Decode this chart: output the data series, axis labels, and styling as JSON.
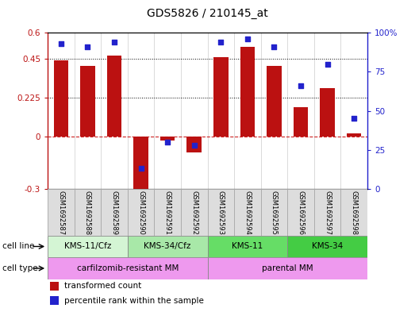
{
  "title": "GDS5826 / 210145_at",
  "samples": [
    "GSM1692587",
    "GSM1692588",
    "GSM1692589",
    "GSM1692590",
    "GSM1692591",
    "GSM1692592",
    "GSM1692593",
    "GSM1692594",
    "GSM1692595",
    "GSM1692596",
    "GSM1692597",
    "GSM1692598"
  ],
  "transformed_count": [
    0.44,
    0.41,
    0.47,
    -0.32,
    -0.02,
    -0.09,
    0.46,
    0.52,
    0.41,
    0.17,
    0.28,
    0.02
  ],
  "percentile_rank": [
    93,
    91,
    94,
    13,
    30,
    28,
    94,
    96,
    91,
    66,
    80,
    45
  ],
  "bar_color": "#bb1111",
  "dot_color": "#2222cc",
  "zero_line_color": "#cc2222",
  "ylim_left": [
    -0.3,
    0.6
  ],
  "ylim_right": [
    0,
    100
  ],
  "yticks_left": [
    -0.3,
    0.0,
    0.225,
    0.45,
    0.6
  ],
  "yticks_right": [
    0,
    25,
    50,
    75,
    100
  ],
  "cell_line_groups": [
    {
      "label": "KMS-11/Cfz",
      "start": 0,
      "end": 3,
      "color": "#d4f5d4"
    },
    {
      "label": "KMS-34/Cfz",
      "start": 3,
      "end": 6,
      "color": "#a8e8a8"
    },
    {
      "label": "KMS-11",
      "start": 6,
      "end": 9,
      "color": "#66dd66"
    },
    {
      "label": "KMS-34",
      "start": 9,
      "end": 12,
      "color": "#44cc44"
    }
  ],
  "cell_type_groups": [
    {
      "label": "carfilzomib-resistant MM",
      "start": 0,
      "end": 6,
      "color": "#ee99ee"
    },
    {
      "label": "parental MM",
      "start": 6,
      "end": 12,
      "color": "#ee99ee"
    }
  ],
  "legend_items": [
    {
      "color": "#bb1111",
      "label": "transformed count"
    },
    {
      "color": "#2222cc",
      "label": "percentile rank within the sample"
    }
  ],
  "fig_width": 5.23,
  "fig_height": 3.93,
  "dpi": 100
}
